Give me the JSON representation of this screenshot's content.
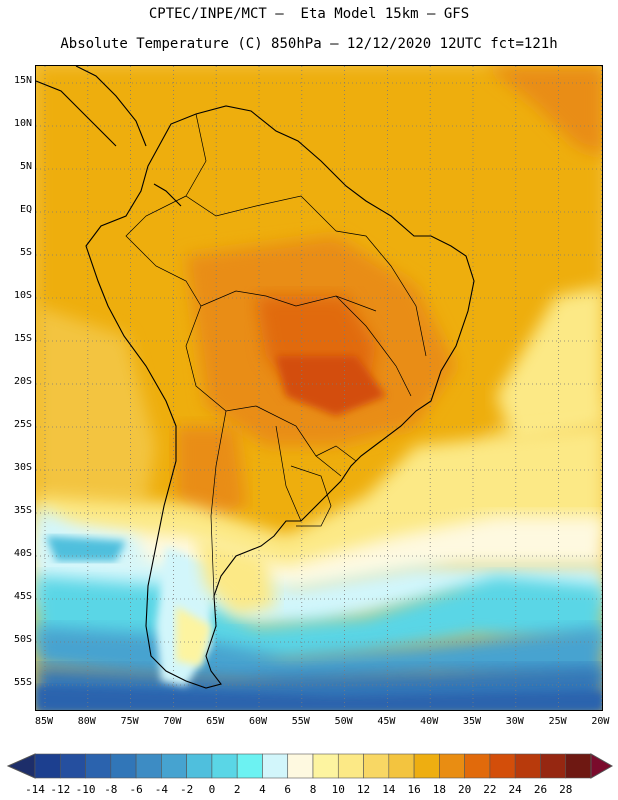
{
  "header": {
    "line1": "CPTEC/INPE/MCT –  Eta Model 15km – GFS",
    "line2": "Absolute Temperature (C) 850hPa – 12/12/2020 12UTC fct=121h"
  },
  "map": {
    "lat_labels": [
      "15N",
      "10N",
      "5N",
      "EQ",
      "5S",
      "10S",
      "15S",
      "20S",
      "25S",
      "30S",
      "35S",
      "40S",
      "45S",
      "50S",
      "55S"
    ],
    "lon_labels": [
      "85W",
      "80W",
      "75W",
      "70W",
      "65W",
      "60W",
      "55W",
      "50W",
      "45W",
      "40W",
      "35W",
      "30W",
      "25W",
      "20W"
    ]
  },
  "colorbar": {
    "labels": [
      "-14",
      "-12",
      "-10",
      "-8",
      "-6",
      "-4",
      "-2",
      "0",
      "2",
      "4",
      "6",
      "8",
      "10",
      "12",
      "14",
      "16",
      "18",
      "20",
      "22",
      "24",
      "26",
      "28"
    ],
    "colors": [
      "#1c3f8f",
      "#254f9f",
      "#2b63ae",
      "#3176b8",
      "#3d8cc4",
      "#46a3d0",
      "#4fbfdd",
      "#5ad6e6",
      "#6cf2f2",
      "#d2f6fb",
      "#fef9e0",
      "#fdf4a0",
      "#fce986",
      "#f8d764",
      "#f3c43f",
      "#eeae11",
      "#e98d12",
      "#e16a0b",
      "#d34e0a",
      "#b83a0c",
      "#962711",
      "#6e1812"
    ],
    "under_color": "#1d2e6a",
    "over_color": "#7a0b2c"
  }
}
